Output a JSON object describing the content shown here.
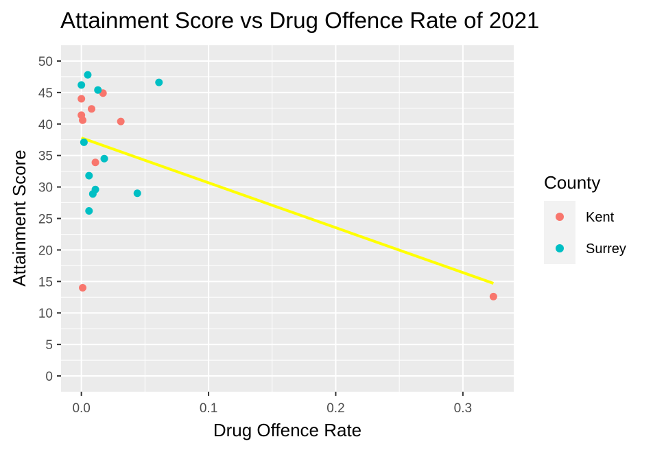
{
  "chart_data": {
    "type": "scatter",
    "title": "Attainment Score vs Drug Offence Rate of 2021",
    "xlabel": "Drug Offence Rate",
    "ylabel": "Attainment Score",
    "xlim": [
      -0.016,
      0.34
    ],
    "ylim": [
      -2.5,
      52.5
    ],
    "x_ticks": [
      0.0,
      0.1,
      0.2,
      0.3
    ],
    "x_tick_labels": [
      "0.0",
      "0.1",
      "0.2",
      "0.3"
    ],
    "y_ticks": [
      0,
      5,
      10,
      15,
      20,
      25,
      30,
      35,
      40,
      45,
      50
    ],
    "y_tick_labels": [
      "0",
      "5",
      "10",
      "15",
      "20",
      "25",
      "30",
      "35",
      "40",
      "45",
      "50"
    ],
    "grid": true,
    "legend": {
      "title": "County",
      "position": "right"
    },
    "series": [
      {
        "name": "Kent",
        "color": "#F8766D",
        "points": [
          {
            "x": 0.0,
            "y": 44.0
          },
          {
            "x": 0.017,
            "y": 44.9
          },
          {
            "x": 0.008,
            "y": 42.4
          },
          {
            "x": 0.0,
            "y": 41.4
          },
          {
            "x": 0.001,
            "y": 40.6
          },
          {
            "x": 0.031,
            "y": 40.4
          },
          {
            "x": 0.011,
            "y": 33.9
          },
          {
            "x": 0.001,
            "y": 14.0
          },
          {
            "x": 0.324,
            "y": 12.6
          }
        ]
      },
      {
        "name": "Surrey",
        "color": "#00BFC4",
        "points": [
          {
            "x": 0.005,
            "y": 47.8
          },
          {
            "x": 0.0,
            "y": 46.2
          },
          {
            "x": 0.061,
            "y": 46.6
          },
          {
            "x": 0.013,
            "y": 45.4
          },
          {
            "x": 0.002,
            "y": 37.1
          },
          {
            "x": 0.018,
            "y": 34.5
          },
          {
            "x": 0.006,
            "y": 31.8
          },
          {
            "x": 0.011,
            "y": 29.6
          },
          {
            "x": 0.009,
            "y": 28.9
          },
          {
            "x": 0.044,
            "y": 29.0
          },
          {
            "x": 0.006,
            "y": 26.2
          }
        ]
      }
    ],
    "trend_line": {
      "color": "#FFFF00",
      "points": [
        {
          "x": 0.0,
          "y": 37.8
        },
        {
          "x": 0.324,
          "y": 14.7
        }
      ]
    }
  }
}
